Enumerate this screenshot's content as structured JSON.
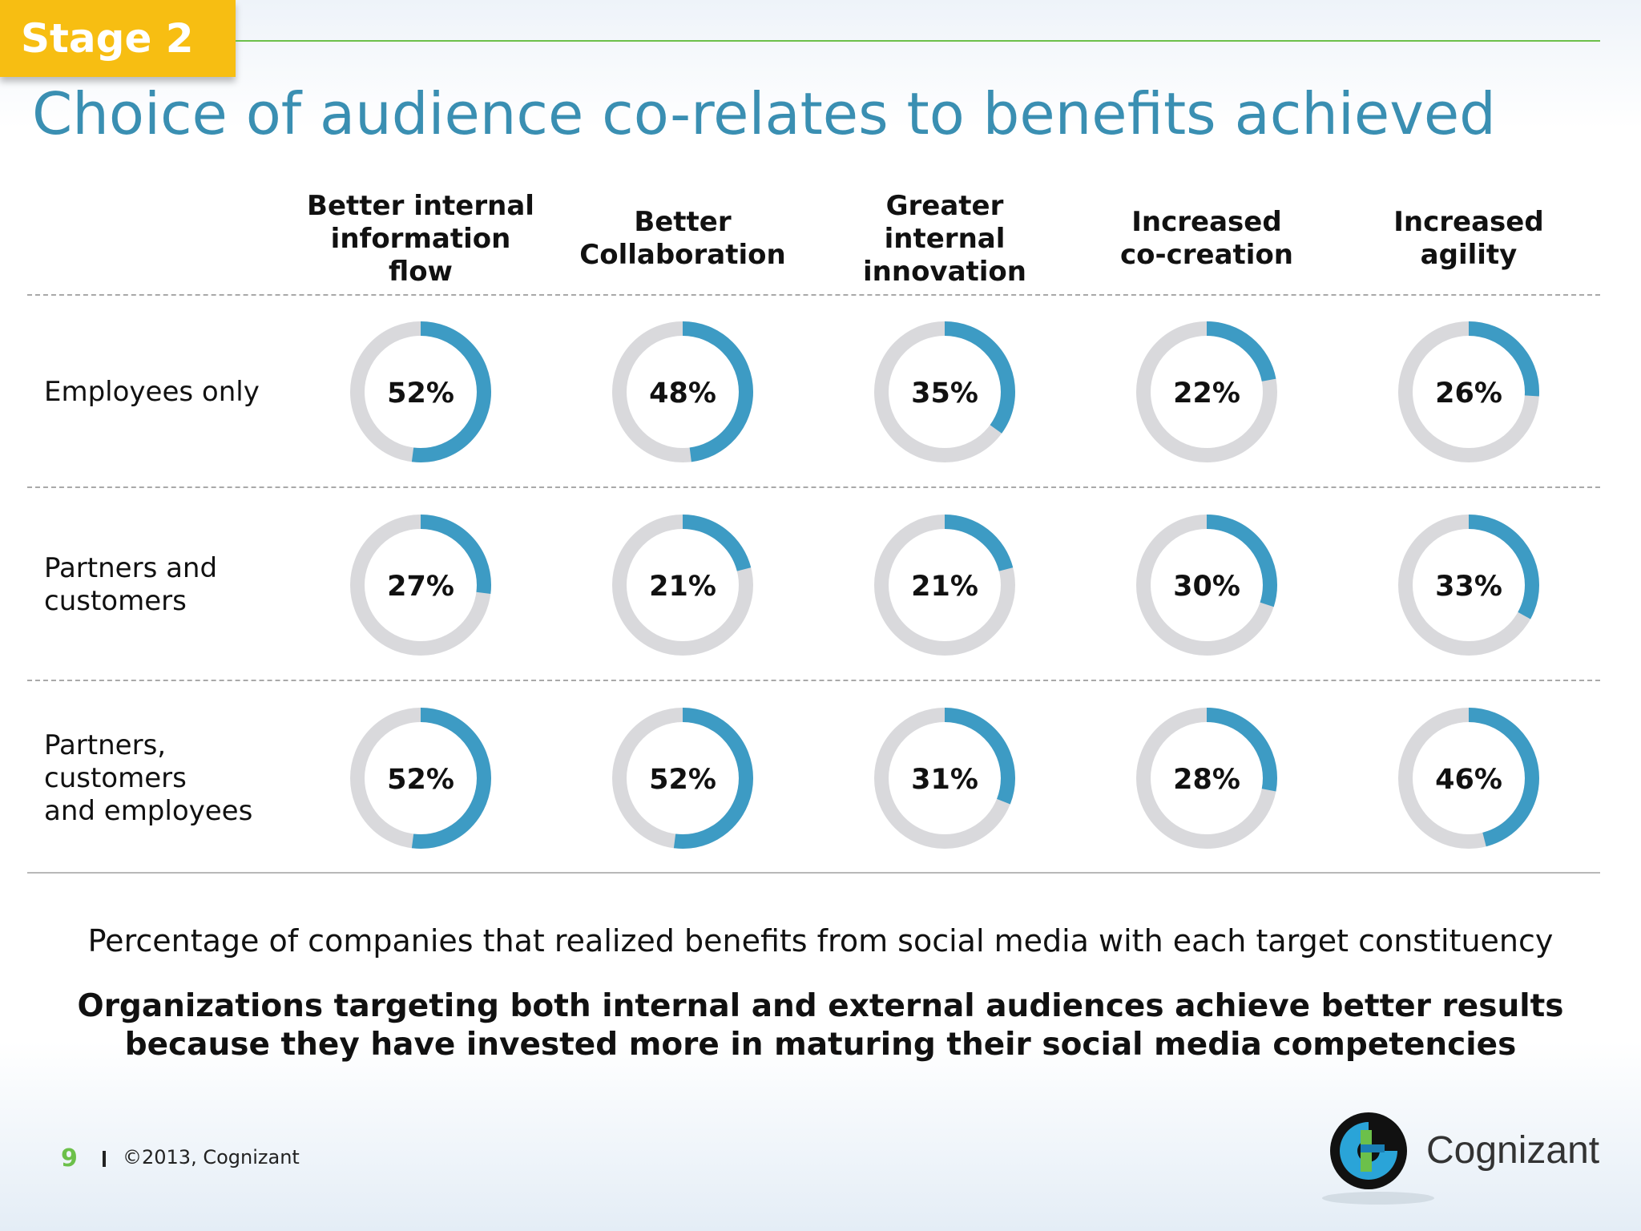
{
  "header": {
    "stage_label": "Stage 2",
    "title": "Choice of audience co-relates to benefits achieved"
  },
  "colors": {
    "accent": "#3d9bc4",
    "track": "#d9d9dc",
    "stage_tab": "#f7be12",
    "title": "#3a8fb2",
    "rule": "#6cc04a"
  },
  "chart_data": {
    "type": "donut-grid",
    "columns": [
      "Better internal\ninformation\nflow",
      "Better\nCollaboration",
      "Greater\ninternal\ninnovation",
      "Increased\nco-creation",
      "Increased\nagility"
    ],
    "rows": [
      "Employees only",
      "Partners and\ncustomers",
      "Partners,\ncustomers\nand employees"
    ],
    "values": [
      [
        52,
        48,
        35,
        22,
        26
      ],
      [
        27,
        21,
        21,
        30,
        33
      ],
      [
        52,
        52,
        31,
        28,
        46
      ]
    ],
    "unit": "%"
  },
  "caption": "Percentage of companies that realized benefits from social media with each target constituency",
  "takeaway": "Organizations targeting both internal and external audiences achieve better results\nbecause they have invested more in maturing their social media competencies",
  "footer": {
    "page_number": "9",
    "copyright": "©2013, Cognizant",
    "logo_text": "Cognizant"
  }
}
